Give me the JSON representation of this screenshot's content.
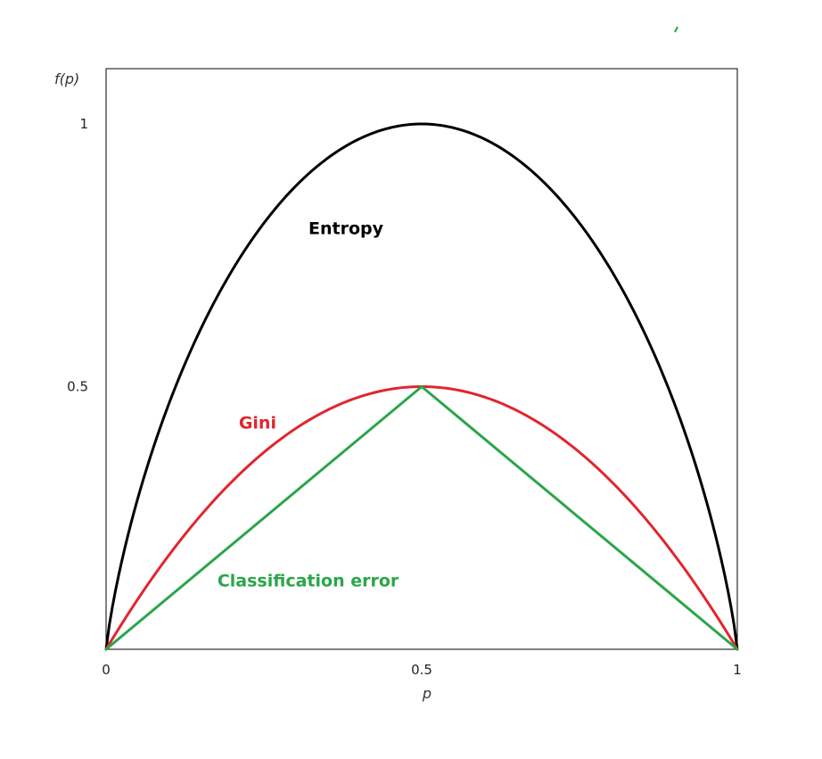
{
  "chart_data": {
    "type": "line",
    "title": "",
    "xlabel": "p",
    "ylabel": "f(p)",
    "xlim": [
      0,
      1
    ],
    "ylim": [
      0,
      1.05
    ],
    "grid": false,
    "legend": "none",
    "x_ticks": [
      {
        "value": 0,
        "label": "0"
      },
      {
        "value": 0.5,
        "label": "0.5"
      },
      {
        "value": 1,
        "label": "1"
      }
    ],
    "y_ticks": [
      {
        "value": 0.5,
        "label": "0.5"
      },
      {
        "value": 1,
        "label": "1"
      }
    ],
    "series": [
      {
        "name": "Entropy",
        "color": "#000000",
        "x": [
          0,
          0.05,
          0.1,
          0.15,
          0.2,
          0.25,
          0.3,
          0.35,
          0.4,
          0.45,
          0.5,
          0.55,
          0.6,
          0.65,
          0.7,
          0.75,
          0.8,
          0.85,
          0.9,
          0.95,
          1
        ],
        "y": [
          0,
          0.286,
          0.469,
          0.61,
          0.722,
          0.811,
          0.881,
          0.934,
          0.971,
          0.993,
          1,
          0.993,
          0.971,
          0.934,
          0.881,
          0.811,
          0.722,
          0.61,
          0.469,
          0.286,
          0
        ],
        "label_at": [
          0.38,
          0.79
        ]
      },
      {
        "name": "Gini",
        "color": "#e0262e",
        "x": [
          0,
          0.05,
          0.1,
          0.15,
          0.2,
          0.25,
          0.3,
          0.35,
          0.4,
          0.45,
          0.5,
          0.55,
          0.6,
          0.65,
          0.7,
          0.75,
          0.8,
          0.85,
          0.9,
          0.95,
          1
        ],
        "y": [
          0,
          0.095,
          0.18,
          0.255,
          0.32,
          0.375,
          0.42,
          0.455,
          0.48,
          0.495,
          0.5,
          0.495,
          0.48,
          0.455,
          0.42,
          0.375,
          0.32,
          0.255,
          0.18,
          0.095,
          0
        ],
        "label_at": [
          0.24,
          0.42
        ]
      },
      {
        "name": "Classification error",
        "color": "#2aa64a",
        "x": [
          0,
          0.5,
          1
        ],
        "y": [
          0,
          0.5,
          0
        ],
        "label_at": [
          0.32,
          0.12
        ]
      }
    ]
  }
}
